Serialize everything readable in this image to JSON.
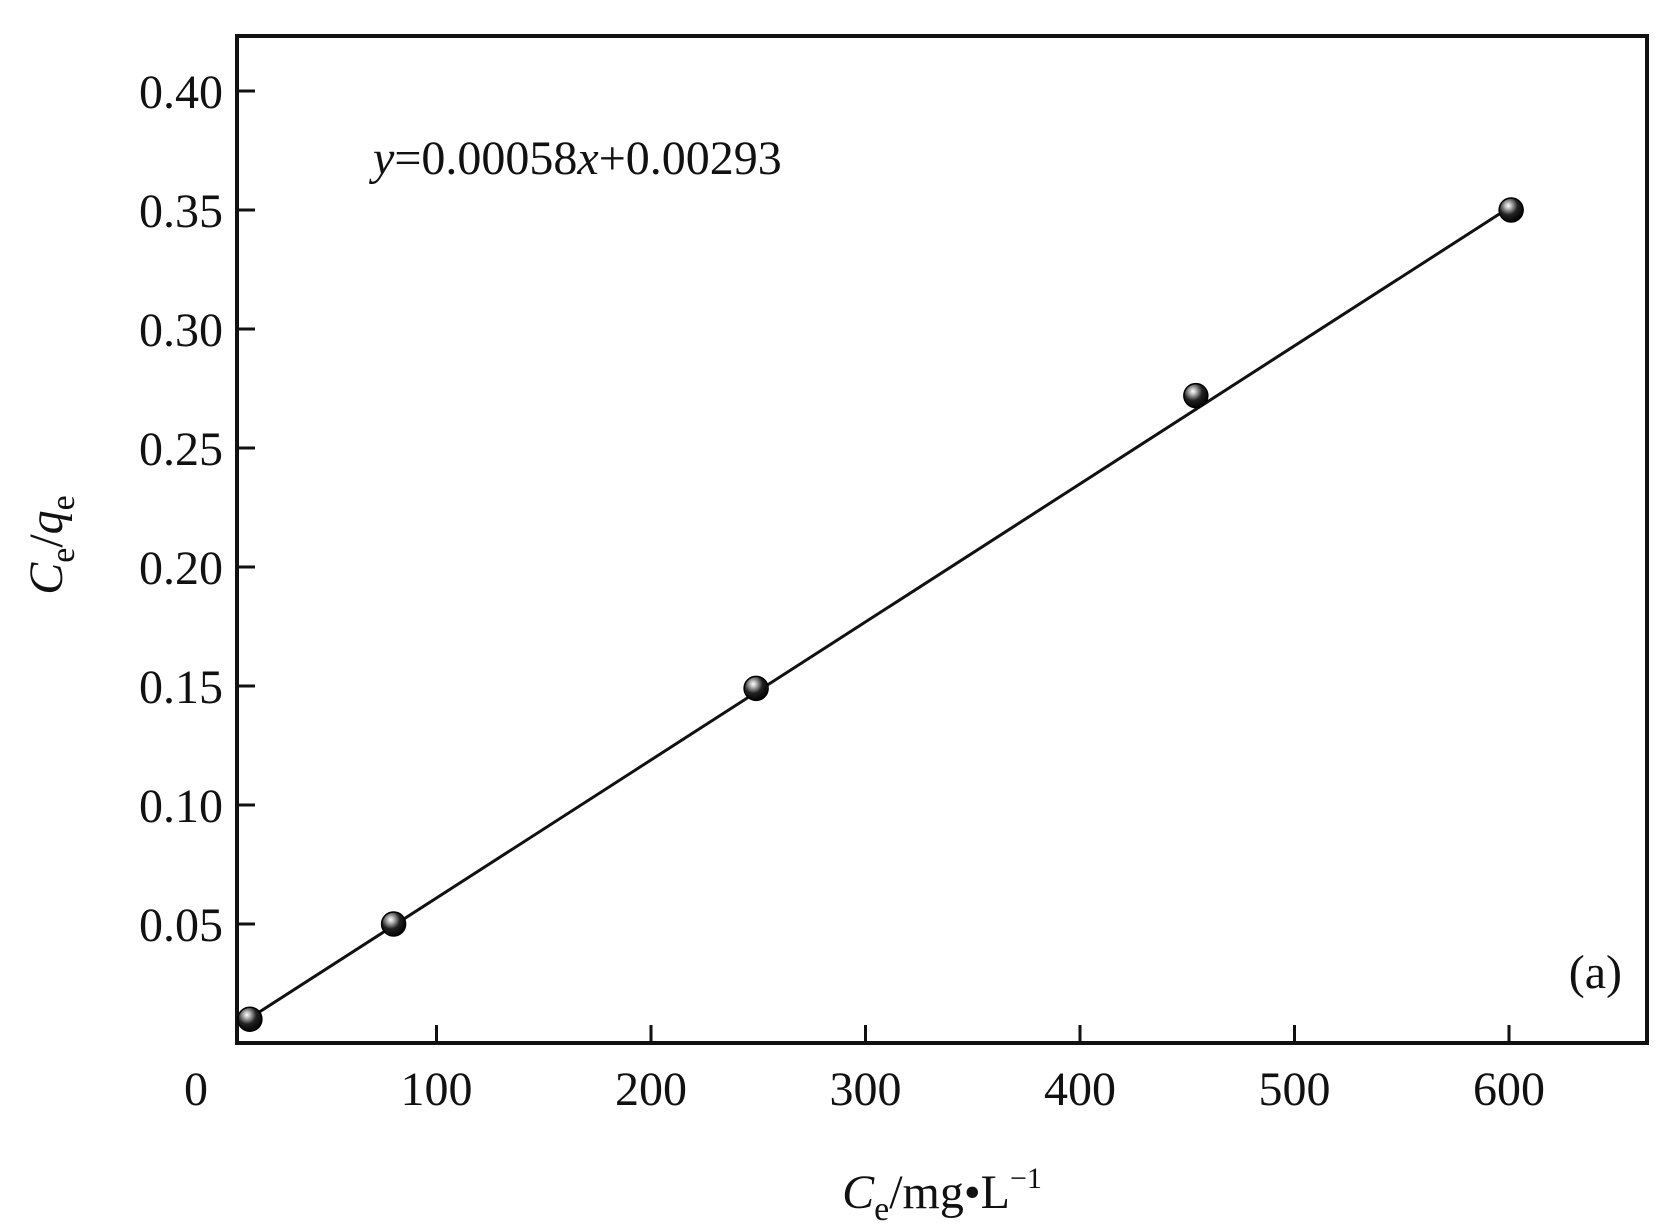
{
  "chart_data": {
    "type": "scatter",
    "panel_label": "(a)",
    "xlim": [
      0,
      620
    ],
    "ylim": [
      0.0,
      0.4
    ],
    "x_ticks": [
      100,
      200,
      300,
      400,
      500,
      600
    ],
    "x_tick_labels": [
      "100",
      "200",
      "300",
      "400",
      "500",
      "600"
    ],
    "x_origin_label": "0",
    "y_ticks": [
      0.05,
      0.1,
      0.15,
      0.2,
      0.25,
      0.3,
      0.35,
      0.4
    ],
    "y_tick_labels": [
      "0.05",
      "0.10",
      "0.15",
      "0.20",
      "0.25",
      "0.30",
      "0.35",
      "0.40"
    ],
    "xlabel": {
      "symbol": "C",
      "subscript": "e",
      "unit": "/mg•L",
      "superscript": "−1"
    },
    "ylabel": {
      "symbol1": "C",
      "sub1": "e",
      "slash": "/",
      "symbol2": "q",
      "sub2": "e"
    },
    "equation": {
      "y": "y",
      "middle": "=0.00058",
      "x": "x",
      "tail": "+0.00293"
    },
    "fit": {
      "slope": 0.00058,
      "intercept": 0.00293,
      "x_range": [
        13,
        600
      ]
    },
    "points": [
      {
        "x": 13,
        "y": 0.01
      },
      {
        "x": 80,
        "y": 0.05
      },
      {
        "x": 249,
        "y": 0.149
      },
      {
        "x": 454,
        "y": 0.272
      },
      {
        "x": 601,
        "y": 0.35
      }
    ],
    "grid": false,
    "colors": {
      "marker": "#111111",
      "line": "#111111",
      "axes": "#111111"
    }
  }
}
